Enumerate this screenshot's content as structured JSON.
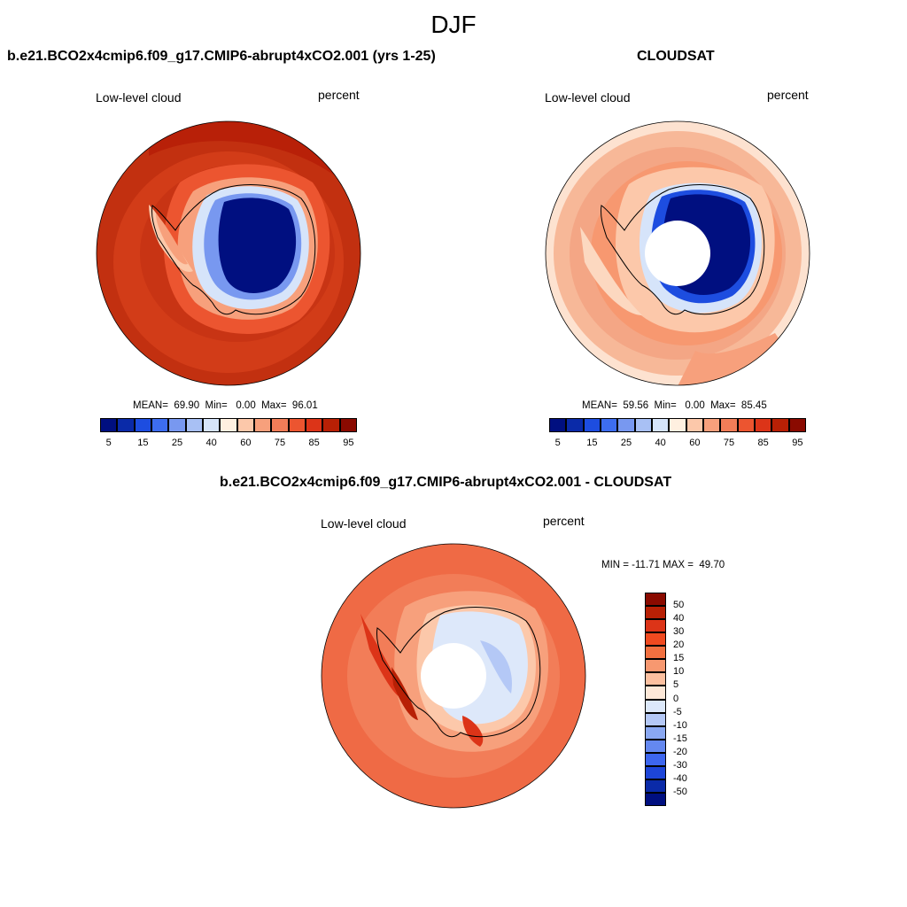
{
  "figure": {
    "title": "DJF"
  },
  "panels": [
    {
      "title": "b.e21.BCO2x4cmip6.f09_g17.CMIP6-abrupt4xCO2.001 (yrs 1-25)",
      "left_label": "Low-level cloud",
      "right_label": "percent",
      "stats": "MEAN=  69.90  Min=   0.00  Max=  96.01",
      "has_polar_hole": false
    },
    {
      "title": "CLOUDSAT",
      "left_label": "Low-level cloud",
      "right_label": "percent",
      "stats": "MEAN=  59.56  Min=   0.00  Max=  85.45",
      "has_polar_hole": true
    },
    {
      "title": "b.e21.BCO2x4cmip6.f09_g17.CMIP6-abrupt4xCO2.001 - CLOUDSAT",
      "left_label": "Low-level cloud",
      "right_label": "percent",
      "stats": "MIN = -11.71 MAX =  49.70",
      "has_polar_hole": true
    }
  ],
  "colorbars": {
    "absolute": {
      "tick_labels": [
        "5",
        "15",
        "25",
        "40",
        "60",
        "75",
        "85",
        "95"
      ],
      "colors": [
        "#000f80",
        "#0a2aa8",
        "#1d4de0",
        "#3d6df0",
        "#7898f0",
        "#a8c0f4",
        "#d6e4fa",
        "#fff0e0",
        "#fcc8aa",
        "#f7a07c",
        "#f27d58",
        "#ec5530",
        "#dc3418",
        "#b82005",
        "#8a0a00"
      ]
    },
    "difference": {
      "tick_labels": [
        "50",
        "40",
        "30",
        "20",
        "15",
        "10",
        "5",
        "0",
        "-5",
        "-10",
        "-15",
        "-20",
        "-30",
        "-40",
        "-50"
      ],
      "colors": [
        "#8a0a00",
        "#b82005",
        "#dc3418",
        "#f04a20",
        "#f27040",
        "#f79870",
        "#fcc0a0",
        "#fde8d8",
        "#dce8fa",
        "#b4c8f6",
        "#8aa8f2",
        "#6488f0",
        "#3d66ee",
        "#1d45d8",
        "#0a2aa8",
        "#000f80"
      ]
    }
  },
  "map_colors": {
    "ocean_warm": "#c23010",
    "ocean_mid": "#e0462a",
    "antarctic_deep": "#000f80",
    "cloudsat_ocean": "#f4a685",
    "cloudsat_edge": "#fde2d0",
    "diff_ocean": "#ef6a45",
    "diff_land": "#dde8fa"
  }
}
